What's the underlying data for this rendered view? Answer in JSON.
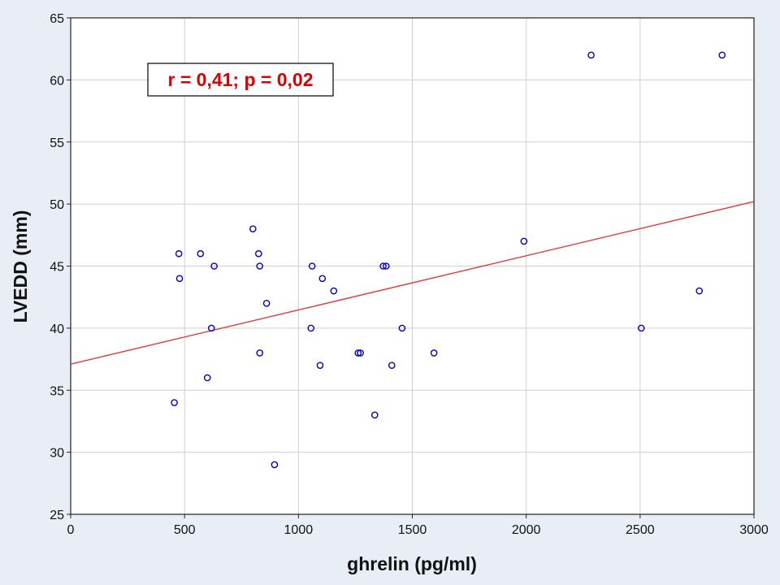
{
  "chart_data": {
    "type": "scatter",
    "xlabel": "ghrelin (pg/ml)",
    "ylabel": "LVEDD (mm)",
    "xlim": [
      0,
      3000
    ],
    "ylim": [
      25,
      65
    ],
    "xticks": [
      0,
      500,
      1000,
      1500,
      2000,
      2500,
      3000
    ],
    "yticks": [
      25,
      30,
      35,
      40,
      45,
      50,
      55,
      60,
      65
    ],
    "grid": true,
    "annotation": "r = 0,41; p = 0,02",
    "colors": {
      "points": "#0000cc",
      "fit_line": "#e03a3a",
      "annotation": "#dd0000",
      "grid": "#cfcfcf",
      "plot_bg": "#ffffff",
      "page_bg": "#e9edf6"
    },
    "fit_line": {
      "x": [
        0,
        3000
      ],
      "y": [
        37.1,
        50.2
      ]
    },
    "points": [
      {
        "x": 455,
        "y": 34
      },
      {
        "x": 475,
        "y": 46
      },
      {
        "x": 478,
        "y": 44
      },
      {
        "x": 570,
        "y": 46
      },
      {
        "x": 600,
        "y": 36
      },
      {
        "x": 618,
        "y": 40
      },
      {
        "x": 630,
        "y": 45
      },
      {
        "x": 800,
        "y": 48
      },
      {
        "x": 825,
        "y": 46
      },
      {
        "x": 830,
        "y": 45
      },
      {
        "x": 830,
        "y": 38
      },
      {
        "x": 860,
        "y": 42
      },
      {
        "x": 895,
        "y": 29
      },
      {
        "x": 1055,
        "y": 40
      },
      {
        "x": 1060,
        "y": 45
      },
      {
        "x": 1095,
        "y": 37
      },
      {
        "x": 1105,
        "y": 44
      },
      {
        "x": 1155,
        "y": 43
      },
      {
        "x": 1262,
        "y": 38
      },
      {
        "x": 1272,
        "y": 38
      },
      {
        "x": 1335,
        "y": 33
      },
      {
        "x": 1372,
        "y": 45
      },
      {
        "x": 1385,
        "y": 45
      },
      {
        "x": 1410,
        "y": 37
      },
      {
        "x": 1455,
        "y": 40
      },
      {
        "x": 1595,
        "y": 38
      },
      {
        "x": 1990,
        "y": 47
      },
      {
        "x": 2285,
        "y": 62
      },
      {
        "x": 2505,
        "y": 40
      },
      {
        "x": 2760,
        "y": 43
      },
      {
        "x": 2860,
        "y": 62
      }
    ]
  }
}
